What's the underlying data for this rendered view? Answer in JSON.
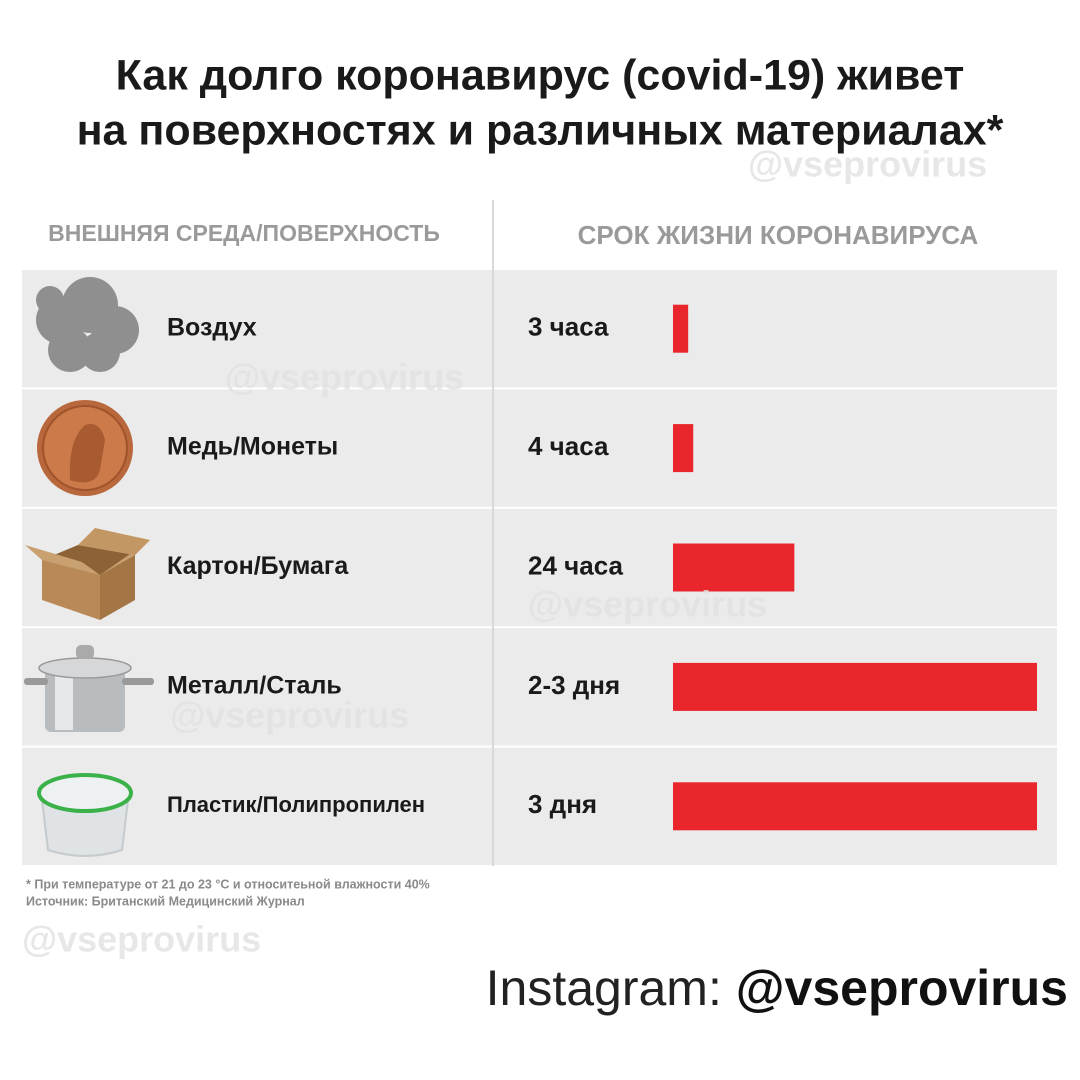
{
  "chart_data": {
    "type": "bar",
    "orientation": "horizontal",
    "title": [
      "Как долго коронавирус (covid-19) живет",
      "на поверхностях и различных материалах*"
    ],
    "column_headers": [
      "ВНЕШНЯЯ СРЕДА/ПОВЕРХНОСТЬ",
      "СРОК ЖИЗНИ КОРОНАВИРУСА"
    ],
    "categories": [
      "Воздух",
      "Медь/Монеты",
      "Картон/Бумага",
      "Металл/Сталь",
      "Пластик/Полипропилен"
    ],
    "values": [
      3,
      4,
      24,
      72,
      72
    ],
    "value_labels": [
      "3 часа",
      "4 часа",
      "24 часа",
      "2-3 дня",
      "3 дня"
    ],
    "color": "#e8262b",
    "xlim": [
      0,
      72
    ],
    "footnotes": [
      "* При температуре от 21 до 23 °С и относитеьной влажности 40%",
      "Источник: Британский Медицинский Журнал"
    ],
    "watermark": "@vseprovirus",
    "instagram_label": "Instagram:",
    "instagram_handle": "@vseprovirus"
  }
}
